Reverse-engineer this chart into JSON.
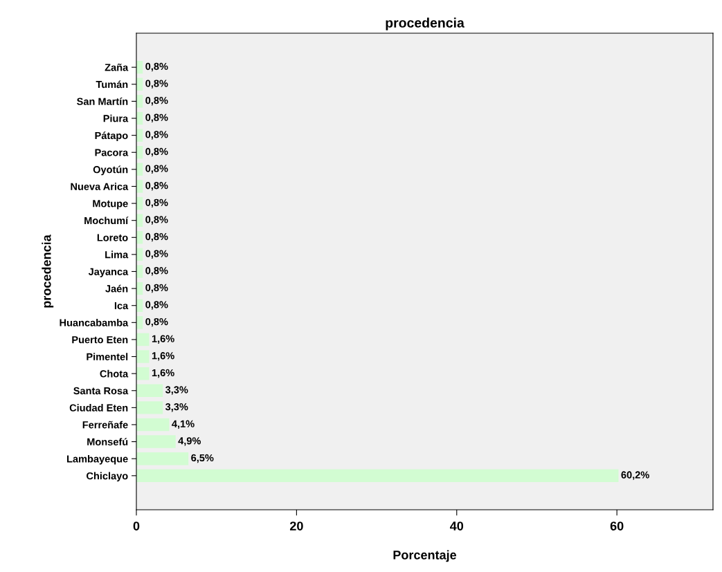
{
  "chart_data": {
    "type": "bar",
    "orientation": "horizontal",
    "title": "procedencia",
    "xlabel": "Porcentaje",
    "ylabel": "procedencia",
    "categories": [
      "Zaña",
      "Tumán",
      "San Martín",
      "Piura",
      "Pátapo",
      "Pacora",
      "Oyotún",
      "Nueva Arica",
      "Motupe",
      "Mochumí",
      "Loreto",
      "Lima",
      "Jayanca",
      "Jaén",
      "Ica",
      "Huancabamba",
      "Puerto Eten",
      "Pimentel",
      "Chota",
      "Santa Rosa",
      "Ciudad Eten",
      "Ferreñafe",
      "Monsefú",
      "Lambayeque",
      "Chiclayo"
    ],
    "values": [
      0.8,
      0.8,
      0.8,
      0.8,
      0.8,
      0.8,
      0.8,
      0.8,
      0.8,
      0.8,
      0.8,
      0.8,
      0.8,
      0.8,
      0.8,
      0.8,
      1.6,
      1.6,
      1.6,
      3.3,
      3.3,
      4.1,
      4.9,
      6.5,
      60.2
    ],
    "value_labels": [
      "0,8%",
      "0,8%",
      "0,8%",
      "0,8%",
      "0,8%",
      "0,8%",
      "0,8%",
      "0,8%",
      "0,8%",
      "0,8%",
      "0,8%",
      "0,8%",
      "0,8%",
      "0,8%",
      "0,8%",
      "0,8%",
      "1,6%",
      "1,6%",
      "1,6%",
      "3,3%",
      "3,3%",
      "4,1%",
      "4,9%",
      "6,5%",
      "60,2%"
    ],
    "color": "#d2fcd2",
    "xlim": [
      0,
      72
    ],
    "xticks": [
      0,
      20,
      40,
      60
    ],
    "grid": false,
    "legend": false
  }
}
